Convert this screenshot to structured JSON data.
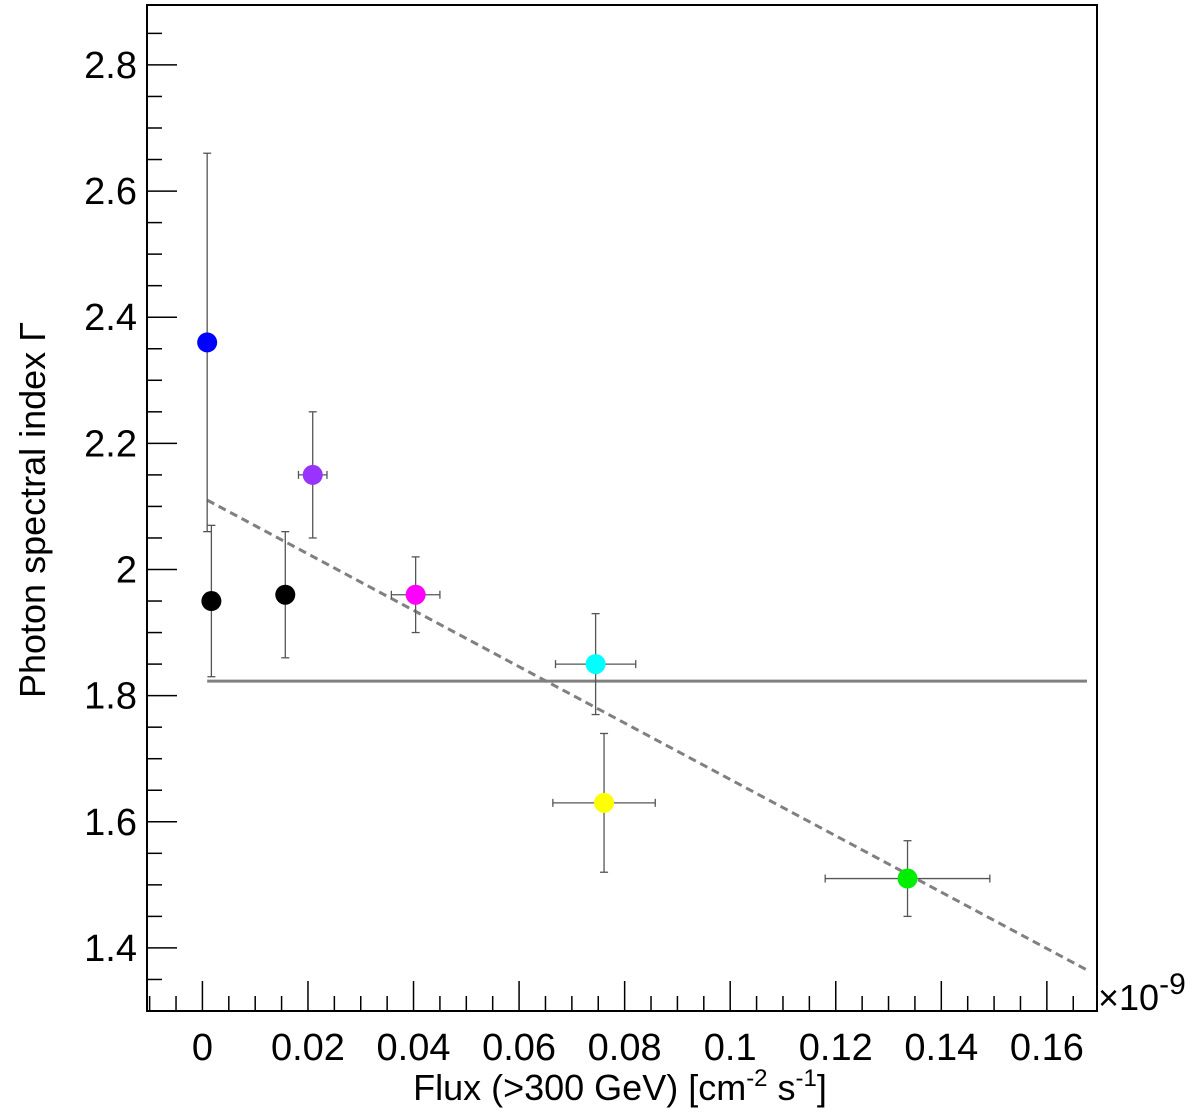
{
  "chart_data": {
    "type": "scatter",
    "xlabel": "Flux (>300 GeV) [cm",
    "xlabel_parts": {
      "main": "Flux (>300 GeV) [cm",
      "sup1": "-2",
      "mid": " s",
      "sup2": "-1",
      "end": "]"
    },
    "ylabel": "Photon spectral index Γ",
    "x_multiplier": "×10",
    "x_multiplier_exp": "-9",
    "xlim": [
      -0.0105,
      0.1695
    ],
    "ylim": [
      1.3,
      2.895
    ],
    "x_ticks": [
      {
        "value": 0,
        "label": "0"
      },
      {
        "value": 0.02,
        "label": "0.02"
      },
      {
        "value": 0.04,
        "label": "0.04"
      },
      {
        "value": 0.06,
        "label": "0.06"
      },
      {
        "value": 0.08,
        "label": "0.08"
      },
      {
        "value": 0.1,
        "label": "0.1"
      },
      {
        "value": 0.12,
        "label": "0.12"
      },
      {
        "value": 0.14,
        "label": "0.14"
      },
      {
        "value": 0.16,
        "label": "0.16"
      }
    ],
    "y_ticks": [
      {
        "value": 1.4,
        "label": "1.4"
      },
      {
        "value": 1.6,
        "label": "1.6"
      },
      {
        "value": 1.8,
        "label": "1.8"
      },
      {
        "value": 2.0,
        "label": "2"
      },
      {
        "value": 2.2,
        "label": "2.2"
      },
      {
        "value": 2.4,
        "label": "2.4"
      },
      {
        "value": 2.6,
        "label": "2.6"
      },
      {
        "value": 2.8,
        "label": "2.8"
      }
    ],
    "points": [
      {
        "x": 0.0009,
        "y": 2.36,
        "xerr": 0,
        "ylo": 2.06,
        "yhi": 2.66,
        "color": "#0000ff"
      },
      {
        "x": 0.0017,
        "y": 1.95,
        "xerr": 0,
        "ylo": 1.83,
        "yhi": 2.07,
        "color": "#000000"
      },
      {
        "x": 0.0157,
        "y": 1.96,
        "xerr": 0,
        "ylo": 1.86,
        "yhi": 2.06,
        "color": "#000000"
      },
      {
        "x": 0.0209,
        "y": 2.15,
        "xerr": 0.0027,
        "ylo": 2.05,
        "yhi": 2.25,
        "color": "#9933ff"
      },
      {
        "x": 0.0404,
        "y": 1.96,
        "xerr": 0.0046,
        "ylo": 1.9,
        "yhi": 2.02,
        "color": "#ff00ff"
      },
      {
        "x": 0.0745,
        "y": 1.85,
        "xerr": 0.0076,
        "ylo": 1.77,
        "yhi": 1.93,
        "color": "#00ffff"
      },
      {
        "x": 0.0761,
        "y": 1.63,
        "xerr": 0.0097,
        "ylo": 1.52,
        "yhi": 1.74,
        "color": "#ffff00"
      },
      {
        "x": 0.1336,
        "y": 1.51,
        "xerr": 0.0156,
        "ylo": 1.45,
        "yhi": 1.57,
        "color": "#00ee00"
      }
    ],
    "lines": [
      {
        "style": "solid",
        "color": "#808080",
        "x": [
          0.0009,
          0.1676
        ],
        "y": [
          1.823,
          1.823
        ]
      },
      {
        "style": "dashed",
        "color": "#808080",
        "x": [
          0.0009,
          0.1676
        ],
        "y": [
          2.11,
          1.365
        ]
      }
    ],
    "grid": false,
    "legend": "none"
  }
}
